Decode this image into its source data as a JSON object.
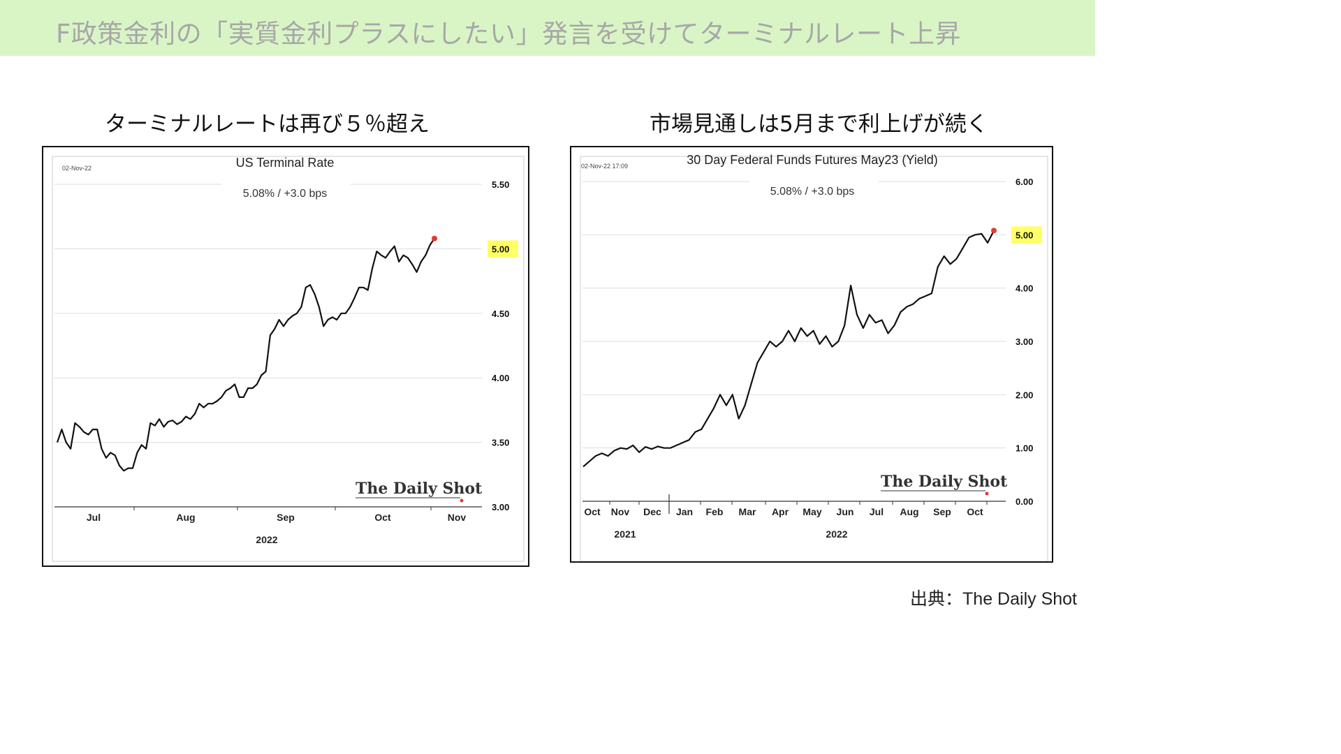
{
  "banner": {
    "title": "F政策金利の「実質金利プラスにしたい」発言を受けてターミナルレート上昇"
  },
  "subtitles": {
    "left": "ターミナルレートは再び５％超え",
    "right": "市場見通しは5月まで利上げが続く"
  },
  "source": "出典：The Daily Shot",
  "colors": {
    "banner_bg": "#d9f5c6",
    "line": "#111111",
    "end_marker": "#e53935",
    "highlight": "#ffff66",
    "grid": "#dddddd"
  },
  "chart_data": [
    {
      "type": "line",
      "title": "US Terminal Rate",
      "subtitle": "5.08%  /  +3.0 bps",
      "date_stamp": "02-Nov-22",
      "watermark": "The Daily Shot",
      "x_tick_labels": [
        "Jul",
        "Aug",
        "Sep",
        "Oct",
        "Nov"
      ],
      "year_label": "2022",
      "y_tick_labels": [
        "3.00",
        "3.50",
        "4.00",
        "4.50",
        "5.00",
        "5.50"
      ],
      "highlight_tick": "5.00",
      "ylim": [
        3.0,
        5.5
      ],
      "series": [
        {
          "values": [
            3.5,
            3.6,
            3.5,
            3.45,
            3.65,
            3.62,
            3.58,
            3.56,
            3.6,
            3.6,
            3.45,
            3.38,
            3.42,
            3.4,
            3.32,
            3.28,
            3.3,
            3.3,
            3.42,
            3.48,
            3.45,
            3.65,
            3.63,
            3.68,
            3.62,
            3.66,
            3.67,
            3.64,
            3.66,
            3.7,
            3.68,
            3.72,
            3.8,
            3.77,
            3.8,
            3.8,
            3.82,
            3.85,
            3.9,
            3.92,
            3.95,
            3.85,
            3.85,
            3.92,
            3.92,
            3.95,
            4.02,
            4.05,
            4.33,
            4.38,
            4.45,
            4.4,
            4.45,
            4.48,
            4.5,
            4.55,
            4.7,
            4.72,
            4.65,
            4.55,
            4.4,
            4.45,
            4.47,
            4.45,
            4.5,
            4.5,
            4.55,
            4.62,
            4.7,
            4.7,
            4.68,
            4.85,
            4.98,
            4.95,
            4.93,
            4.98,
            5.02,
            4.9,
            4.95,
            4.93,
            4.88,
            4.82,
            4.9,
            4.95,
            5.03,
            5.08
          ]
        }
      ]
    },
    {
      "type": "line",
      "title": "30 Day Federal Funds Futures May23 (Yield)",
      "subtitle": "5.08%  /  +3.0 bps",
      "date_stamp": "02-Nov-22 17:09",
      "watermark": "The Daily Shot",
      "x_tick_labels": [
        "Oct",
        "Nov",
        "Dec",
        "Jan",
        "Feb",
        "Mar",
        "Apr",
        "May",
        "Jun",
        "Jul",
        "Aug",
        "Sep",
        "Oct"
      ],
      "year_labels": [
        "2021",
        "2022"
      ],
      "y_tick_labels": [
        "0.00",
        "1.00",
        "2.00",
        "3.00",
        "4.00",
        "5.00",
        "6.00"
      ],
      "highlight_tick": "5.00",
      "ylim": [
        0,
        6
      ],
      "series": [
        {
          "values": [
            0.65,
            0.75,
            0.85,
            0.9,
            0.85,
            0.95,
            1.0,
            0.98,
            1.05,
            0.92,
            1.02,
            0.98,
            1.03,
            1.0,
            1.0,
            1.05,
            1.1,
            1.15,
            1.3,
            1.35,
            1.55,
            1.75,
            2.0,
            1.8,
            2.0,
            1.55,
            1.8,
            2.2,
            2.6,
            2.8,
            3.0,
            2.9,
            3.0,
            3.2,
            3.0,
            3.25,
            3.1,
            3.2,
            2.95,
            3.1,
            2.9,
            3.0,
            3.3,
            4.05,
            3.5,
            3.25,
            3.5,
            3.35,
            3.4,
            3.15,
            3.3,
            3.55,
            3.65,
            3.7,
            3.8,
            3.85,
            3.9,
            4.4,
            4.6,
            4.45,
            4.55,
            4.75,
            4.95,
            5.0,
            5.02,
            4.85,
            5.08
          ]
        }
      ]
    }
  ]
}
